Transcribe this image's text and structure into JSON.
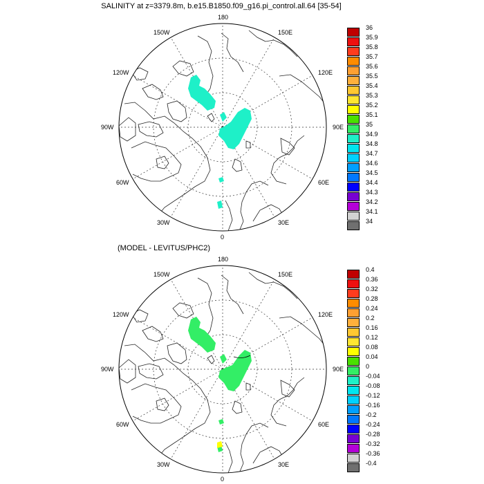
{
  "title": "SALINITY at z=3379.8m, b.e15.B1850.f09_g16.pi_control.all.64 [35-54]",
  "subtitle": "(MODEL - LEVITUS/PHC2)",
  "longitude_labels": [
    "180",
    "150E",
    "120E",
    "90E",
    "60E",
    "30E",
    "0",
    "30W",
    "60W",
    "90W",
    "120W",
    "150W"
  ],
  "top_panel": {
    "colorbar_labels": [
      "36",
      "35.9",
      "35.8",
      "35.7",
      "35.6",
      "35.5",
      "35.4",
      "35.3",
      "35.2",
      "35.1",
      "35",
      "34.9",
      "34.8",
      "34.7",
      "34.6",
      "34.5",
      "34.4",
      "34.3",
      "34.2",
      "34.1",
      "34"
    ],
    "colorbar_colors": [
      "#c00000",
      "#ee1010",
      "#ff3c1e",
      "#ff8c00",
      "#ffa032",
      "#ffb03c",
      "#ffc832",
      "#ffe632",
      "#ffff00",
      "#4ae000",
      "#33ee66",
      "#1ef0c8",
      "#00e6f0",
      "#00d2ff",
      "#00a0ff",
      "#0078ff",
      "#0000ff",
      "#7800d2",
      "#b400d8",
      "#d2d2d2",
      "#707070"
    ],
    "field_color": "#1ef0c8"
  },
  "bottom_panel": {
    "colorbar_labels": [
      "0.4",
      "0.36",
      "0.32",
      "0.28",
      "0.24",
      "0.2",
      "0.16",
      "0.12",
      "0.08",
      "0.04",
      "0",
      "-0.04",
      "-0.08",
      "-0.12",
      "-0.16",
      "-0.2",
      "-0.24",
      "-0.28",
      "-0.32",
      "-0.36",
      "-0.4"
    ],
    "colorbar_colors": [
      "#c00000",
      "#ee1010",
      "#ff3c1e",
      "#ff8c00",
      "#ffa032",
      "#ffb03c",
      "#ffc832",
      "#ffe632",
      "#ffff00",
      "#4ae000",
      "#33ee66",
      "#1ef0c8",
      "#00e6f0",
      "#00d2ff",
      "#00a0ff",
      "#0078ff",
      "#0000ff",
      "#7800d2",
      "#b400d8",
      "#d2d2d2",
      "#707070"
    ],
    "field_color": "#33ee66",
    "positive_color": "#ffff00"
  }
}
